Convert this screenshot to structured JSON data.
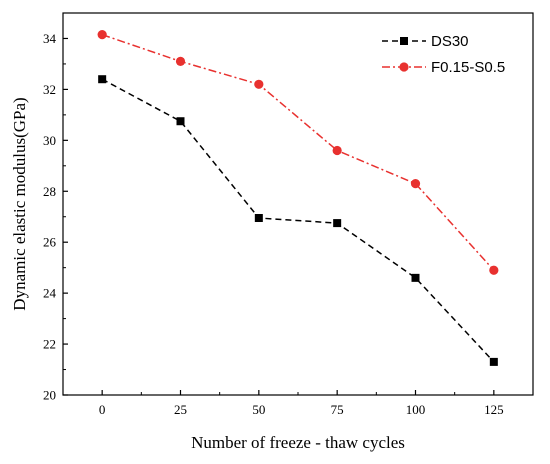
{
  "chart_data": {
    "type": "line",
    "xlabel": "Number of freeze - thaw cycles",
    "ylabel": "Dynamic elastic modulus(GPa)",
    "x": [
      0,
      25,
      50,
      75,
      100,
      125
    ],
    "xlim": [
      -12.5,
      137.5
    ],
    "ylim": [
      20,
      35
    ],
    "xticks": [
      0,
      25,
      50,
      75,
      100,
      125
    ],
    "yticks": [
      20,
      22,
      24,
      26,
      28,
      30,
      32,
      34
    ],
    "legend_position": "top-right",
    "series": [
      {
        "name": "DS30",
        "values": [
          32.4,
          30.75,
          26.95,
          26.75,
          24.6,
          21.3
        ],
        "color": "#000000",
        "marker": "square",
        "line_style": "dashed"
      },
      {
        "name": "F0.15-S0.5",
        "values": [
          34.15,
          33.1,
          32.2,
          29.6,
          28.3,
          24.9
        ],
        "color": "#e8312f",
        "marker": "circle",
        "line_style": "dash-dot"
      }
    ]
  }
}
